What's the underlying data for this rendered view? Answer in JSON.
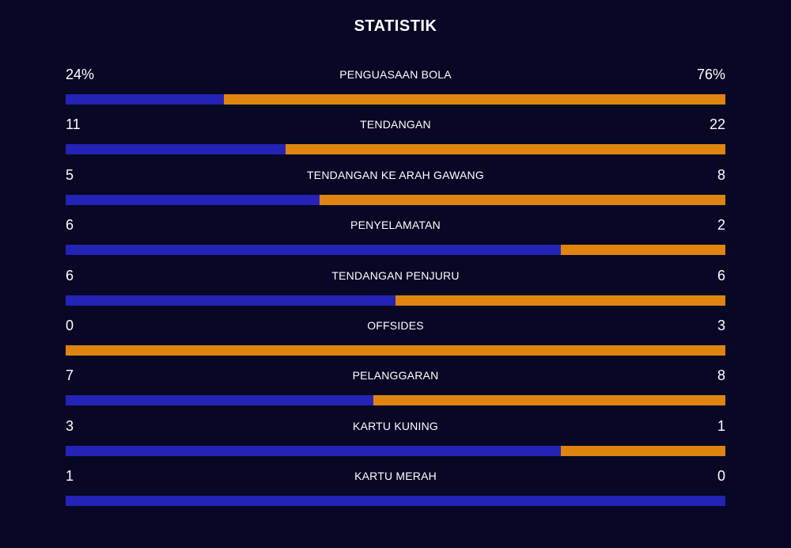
{
  "title": "STATISTIK",
  "colors": {
    "background": "#080725",
    "home": "#2323B5",
    "away": "#DE840F",
    "text": "#FFFFFF"
  },
  "stats": [
    {
      "label": "PENGUASAAN BOLA",
      "home": "24%",
      "away": "76%",
      "home_value": 24,
      "away_value": 76
    },
    {
      "label": "TENDANGAN",
      "home": "11",
      "away": "22",
      "home_value": 11,
      "away_value": 22
    },
    {
      "label": "TENDANGAN KE ARAH GAWANG",
      "home": "5",
      "away": "8",
      "home_value": 5,
      "away_value": 8
    },
    {
      "label": "PENYELAMATAN",
      "home": "6",
      "away": "2",
      "home_value": 6,
      "away_value": 2
    },
    {
      "label": "TENDANGAN PENJURU",
      "home": "6",
      "away": "6",
      "home_value": 6,
      "away_value": 6
    },
    {
      "label": "OFFSIDES",
      "home": "0",
      "away": "3",
      "home_value": 0,
      "away_value": 3
    },
    {
      "label": "PELANGGARAN",
      "home": "7",
      "away": "8",
      "home_value": 7,
      "away_value": 8
    },
    {
      "label": "KARTU KUNING",
      "home": "3",
      "away": "1",
      "home_value": 3,
      "away_value": 1
    },
    {
      "label": "KARTU MERAH",
      "home": "1",
      "away": "0",
      "home_value": 1,
      "away_value": 0
    }
  ]
}
